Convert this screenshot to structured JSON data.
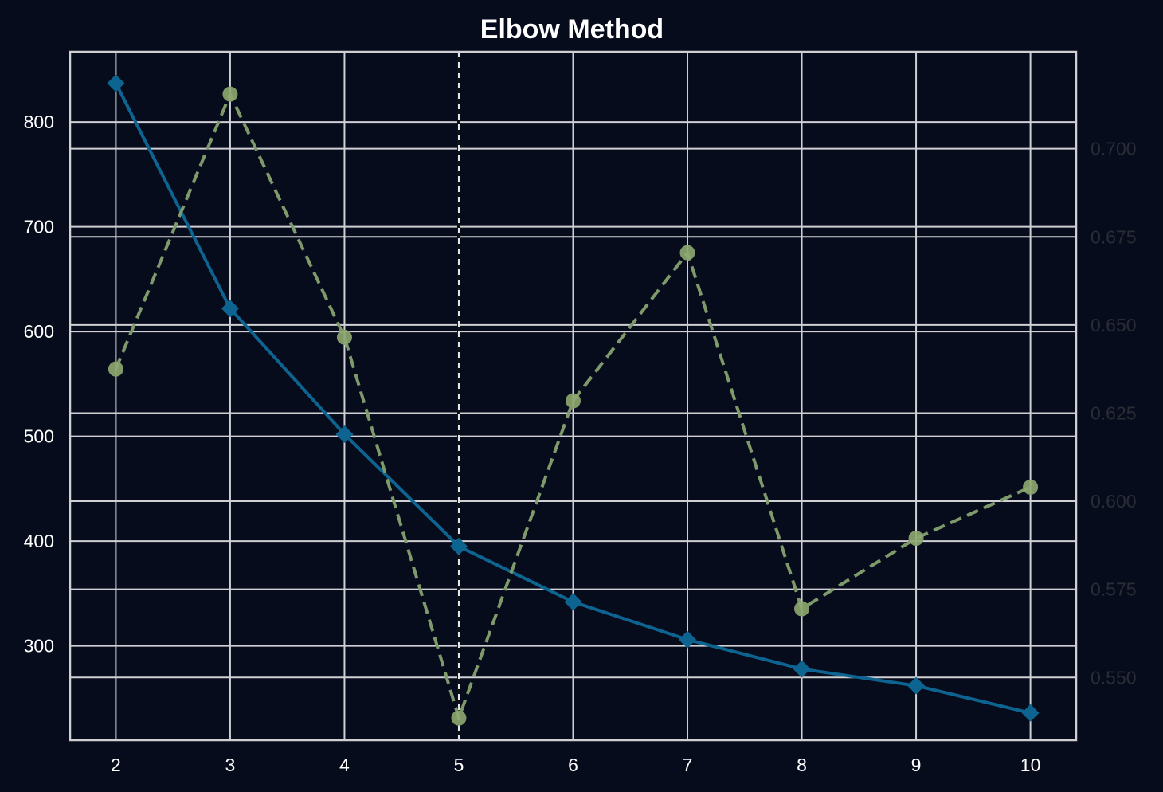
{
  "chart_data": {
    "type": "line",
    "title": "Elbow Method",
    "xlabel": "",
    "ylabel": "",
    "x": [
      2,
      3,
      4,
      5,
      6,
      7,
      8,
      9,
      10
    ],
    "xticks": [
      "2",
      "3",
      "4",
      "5",
      "6",
      "7",
      "8",
      "9",
      "10"
    ],
    "xlim": [
      1.6,
      10.4
    ],
    "grid": true,
    "background": "#070c1d",
    "series": [
      {
        "axis": "left",
        "style": "solid",
        "marker": "diamond",
        "color": "#0e6491",
        "values": [
          837,
          622,
          502,
          395,
          342,
          306,
          278,
          262,
          236
        ]
      },
      {
        "axis": "right",
        "style": "dashed",
        "marker": "circle",
        "color": "#7f9a6a",
        "values": [
          0.6375,
          0.7155,
          0.6465,
          0.5385,
          0.6285,
          0.6705,
          0.5695,
          0.5895,
          0.604
        ]
      }
    ],
    "y_left": {
      "ylim": [
        210,
        867
      ],
      "ticks": [
        "300",
        "400",
        "500",
        "600",
        "700",
        "800"
      ],
      "tick_values": [
        300,
        400,
        500,
        600,
        700,
        800
      ]
    },
    "y_right": {
      "ylim": [
        0.5322,
        0.7275
      ],
      "ticks": [
        "0.550",
        "0.575",
        "0.600",
        "0.625",
        "0.650",
        "0.675",
        "0.700"
      ],
      "tick_values": [
        0.55,
        0.575,
        0.6,
        0.625,
        0.65,
        0.675,
        0.7
      ]
    },
    "annotations": [
      {
        "type": "vline",
        "x": 5,
        "style": "dashed",
        "color": "#e8e8e8"
      }
    ]
  }
}
